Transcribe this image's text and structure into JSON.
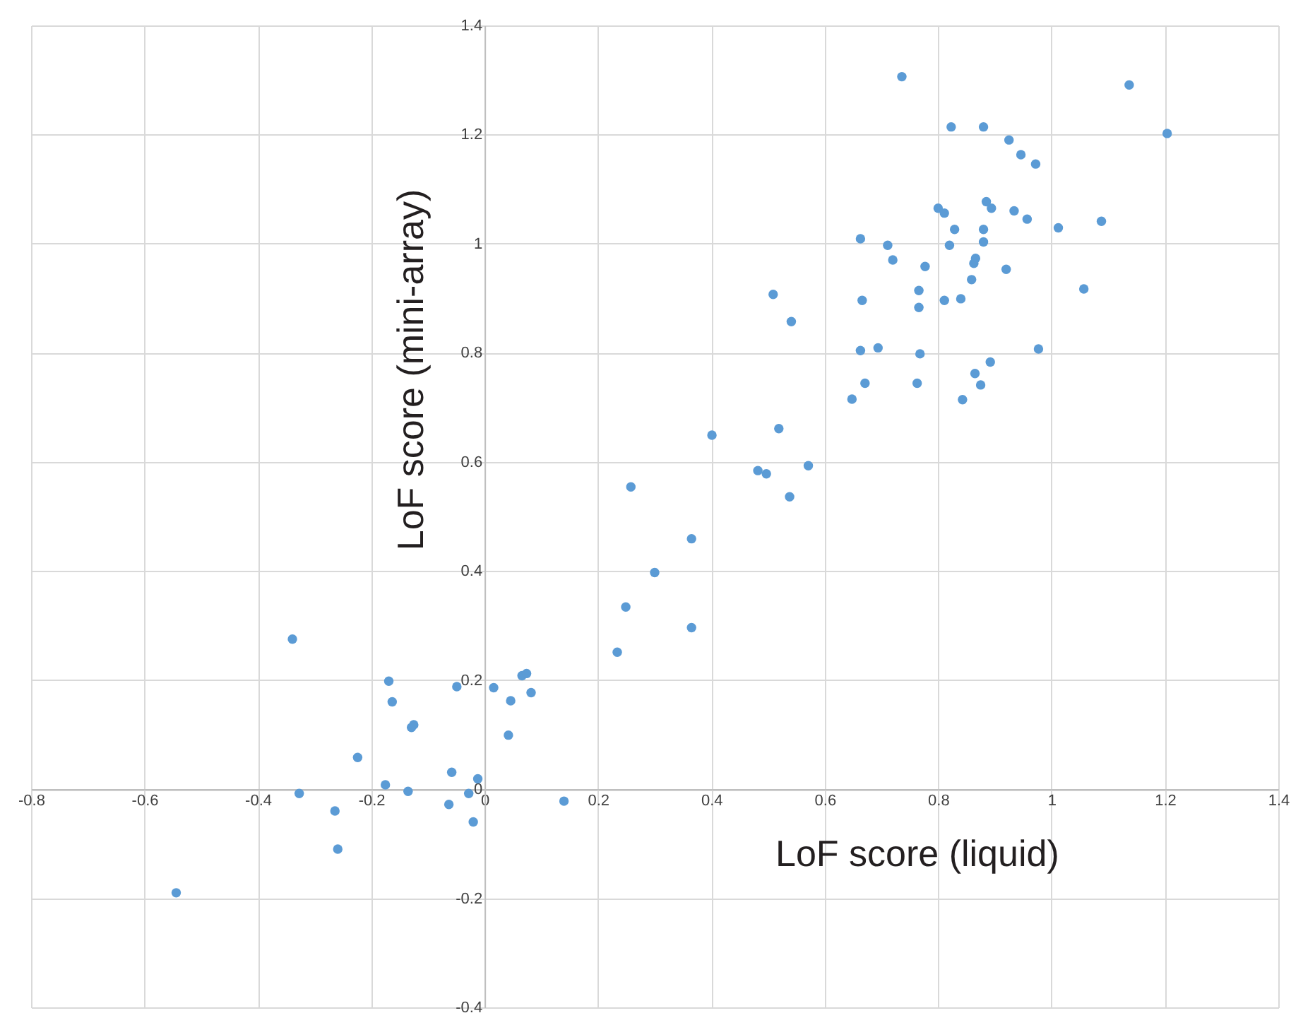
{
  "chart_data": {
    "type": "scatter",
    "xlabel": "LoF score (liquid)",
    "ylabel": "LoF score (mini-array)",
    "xlim": [
      -0.8,
      1.4
    ],
    "ylim": [
      -0.4,
      1.4
    ],
    "xticks": [
      -0.8,
      -0.6,
      -0.4,
      -0.2,
      0,
      0.2,
      0.4,
      0.6,
      0.8,
      1,
      1.2,
      1.4
    ],
    "yticks": [
      -0.4,
      -0.2,
      0,
      0.2,
      0.4,
      0.6,
      0.8,
      1,
      1.2,
      1.4
    ],
    "grid": true,
    "marker": "circle",
    "series": [
      {
        "color": "#5b9bd5",
        "x": [
          -0.544,
          -0.339,
          -0.327,
          -0.264,
          -0.259,
          -0.224,
          -0.175,
          -0.169,
          -0.163,
          -0.135,
          -0.129,
          -0.125,
          -0.063,
          -0.058,
          -0.049,
          -0.028,
          -0.02,
          -0.012,
          0.016,
          0.042,
          0.046,
          0.066,
          0.074,
          0.082,
          0.14,
          0.234,
          0.249,
          0.258,
          0.3,
          0.365,
          0.365,
          0.401,
          0.482,
          0.497,
          0.519,
          0.538,
          0.571,
          0.648,
          0.671,
          0.509,
          0.541,
          0.736,
          0.823,
          0.88,
          0.925,
          0.946,
          0.972,
          1.137,
          1.204,
          0.8,
          0.811,
          0.885,
          0.894,
          0.934,
          0.957,
          1.012,
          1.088,
          0.829,
          0.88,
          0.663,
          0.711,
          0.82,
          0.88,
          0.72,
          0.866,
          0.863,
          0.777,
          0.92,
          0.859,
          0.766,
          1.057,
          0.666,
          0.811,
          0.84,
          0.766,
          0.663,
          0.694,
          0.768,
          0.977,
          0.892,
          0.865,
          0.763,
          0.875,
          0.843
        ],
        "values": [
          -0.19,
          0.275,
          -0.008,
          -0.04,
          -0.11,
          0.058,
          0.008,
          0.198,
          0.16,
          -0.004,
          0.113,
          0.118,
          -0.028,
          0.031,
          0.188,
          -0.008,
          -0.06,
          0.019,
          0.186,
          0.099,
          0.162,
          0.208,
          0.212,
          0.177,
          -0.022,
          0.251,
          0.334,
          0.554,
          0.397,
          0.296,
          0.459,
          0.649,
          0.584,
          0.578,
          0.661,
          0.536,
          0.593,
          0.715,
          0.744,
          0.907,
          0.857,
          1.306,
          1.214,
          1.214,
          1.19,
          1.163,
          1.146,
          1.291,
          1.202,
          1.065,
          1.056,
          1.077,
          1.065,
          1.06,
          1.045,
          1.029,
          1.041,
          1.026,
          1.026,
          1.009,
          0.997,
          0.997,
          1.003,
          0.97,
          0.973,
          0.964,
          0.958,
          0.953,
          0.934,
          0.914,
          0.917,
          0.896,
          0.896,
          0.899,
          0.883,
          0.804,
          0.809,
          0.798,
          0.807,
          0.783,
          0.762,
          0.744,
          0.741,
          0.714
        ]
      }
    ]
  }
}
